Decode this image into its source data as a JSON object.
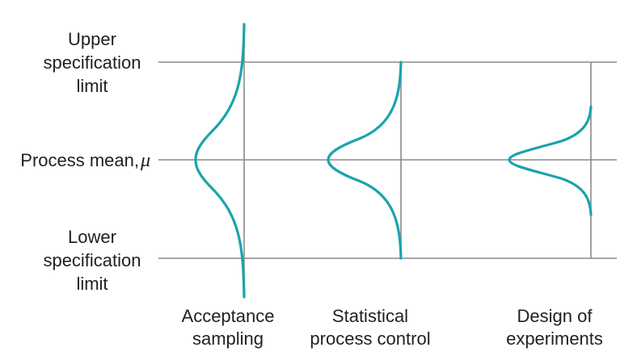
{
  "left_labels": {
    "upper": [
      "Upper",
      "specification",
      "limit"
    ],
    "mean_prefix": "Process mean,",
    "mean_symbol": "μ",
    "lower": [
      "Lower",
      "specification",
      "limit"
    ]
  },
  "columns": [
    {
      "label": [
        "Acceptance",
        "sampling"
      ]
    },
    {
      "label": [
        "Statistical",
        "process control"
      ]
    },
    {
      "label": [
        "Design of",
        "experiments"
      ]
    }
  ],
  "colors": {
    "curve": "#1aa3ad",
    "guide_lines": "#8a8a8a",
    "text": "#231f20"
  }
}
